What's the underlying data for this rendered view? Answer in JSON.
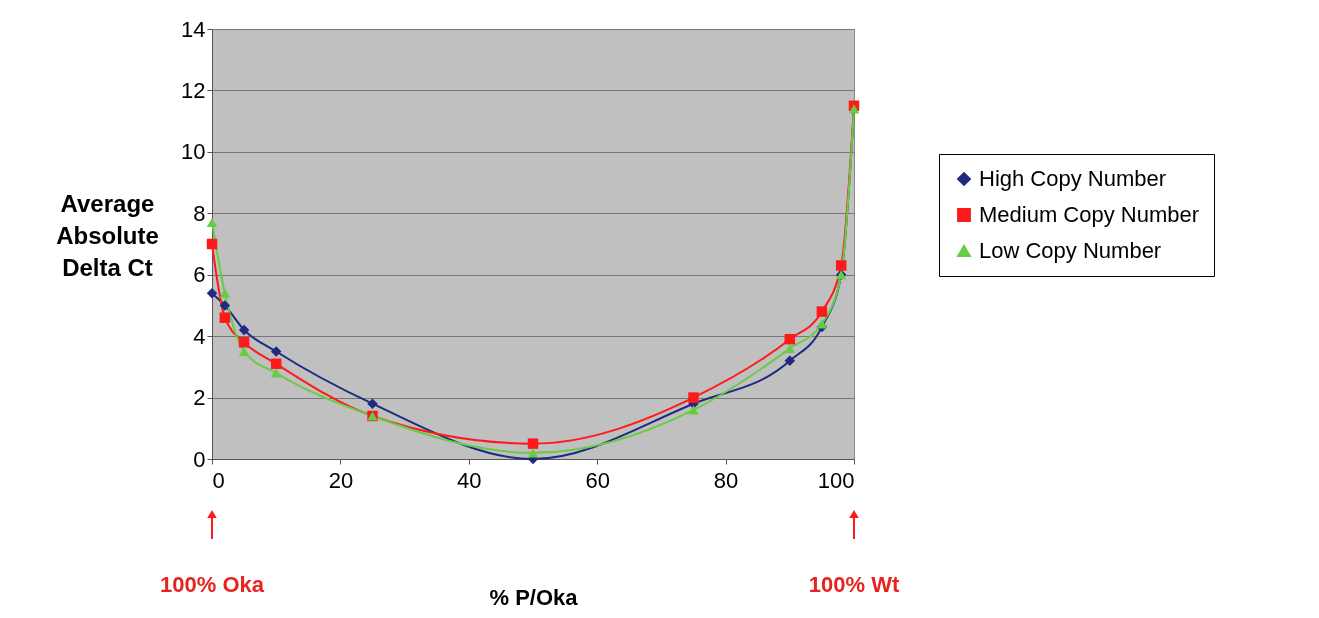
{
  "chart_data": {
    "type": "line",
    "xlabel": "% P/Oka",
    "ylabel": "Average Absolute Delta Ct",
    "x": [
      0,
      2,
      5,
      10,
      25,
      50,
      75,
      90,
      95,
      98,
      100
    ],
    "series": [
      {
        "name": "High Copy Number",
        "color": "#1f2a80",
        "marker": "diamond",
        "values": [
          5.4,
          5.0,
          4.2,
          3.5,
          1.8,
          0.0,
          1.8,
          3.2,
          4.3,
          6.0,
          11.4
        ]
      },
      {
        "name": "Medium Copy Number",
        "color": "#ff1a1a",
        "marker": "square",
        "values": [
          7.0,
          4.6,
          3.8,
          3.1,
          1.4,
          0.5,
          2.0,
          3.9,
          4.8,
          6.3,
          11.5
        ]
      },
      {
        "name": "Low Copy Number",
        "color": "#66cc44",
        "marker": "triangle",
        "values": [
          7.7,
          5.4,
          3.5,
          2.8,
          1.4,
          0.2,
          1.6,
          3.6,
          4.4,
          6.0,
          11.4
        ]
      }
    ],
    "xlim": [
      0,
      100
    ],
    "xticks": [
      0,
      20,
      40,
      60,
      80,
      100
    ],
    "ylim": [
      0,
      14
    ],
    "yticks": [
      0,
      2,
      4,
      6,
      8,
      10,
      12,
      14
    ],
    "grid": "y",
    "legend": "right",
    "annotations": [
      "100% Oka",
      "100% Wt"
    ]
  }
}
